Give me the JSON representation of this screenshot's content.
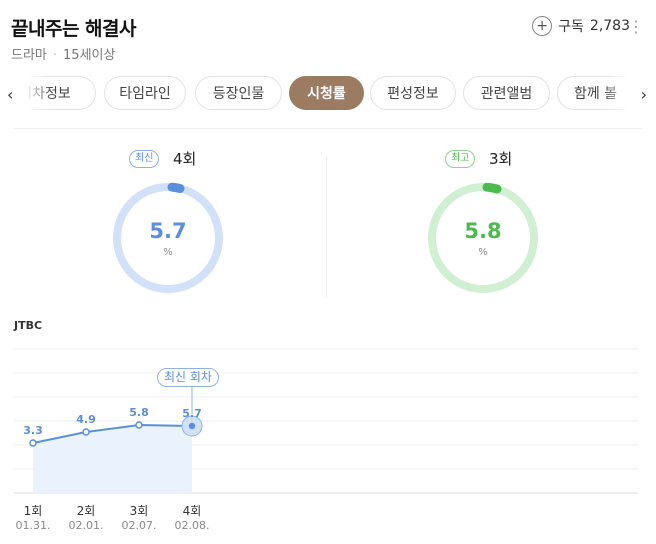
{
  "header": {
    "title": "끝내주는 해결사",
    "genre": "드라마",
    "dot": "·",
    "rating": "15세이상",
    "subscribe_label": "구독",
    "subscribe_count": "2,783"
  },
  "tabs": [
    {
      "label": "회차정보"
    },
    {
      "label": "타임라인"
    },
    {
      "label": "등장인물"
    },
    {
      "label": "시청률",
      "active": true
    },
    {
      "label": "편성정보"
    },
    {
      "label": "관련앨범"
    },
    {
      "label": "함께 볼"
    }
  ],
  "gauges": {
    "latest": {
      "badge": "최신",
      "episode": "4회",
      "value": "5.7",
      "unit": "%",
      "color": "#5b8fdc",
      "track": "#d3e1f8"
    },
    "best": {
      "badge": "최고",
      "episode": "3회",
      "value": "5.8",
      "unit": "%",
      "color": "#4cbb4f",
      "track": "#d1efd2"
    }
  },
  "chart_data": {
    "type": "line",
    "network": "JTBC",
    "x": [
      "1회",
      "2회",
      "3회",
      "4회"
    ],
    "dates": [
      "01.31.",
      "02.01.",
      "02.07.",
      "02.08."
    ],
    "values": [
      3.3,
      4.9,
      5.8,
      5.7
    ],
    "value_labels": [
      "3.3",
      "4.9",
      "5.8",
      "5.7"
    ],
    "annotation": "최신 회차",
    "line_color": "#5b8fdc",
    "grid": true
  }
}
